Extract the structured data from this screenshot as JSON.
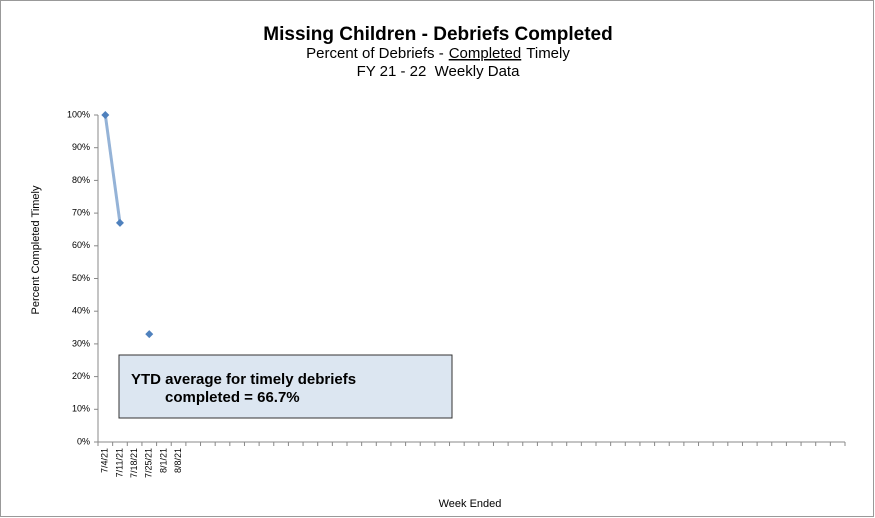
{
  "chart_data": {
    "type": "line",
    "title": "Missing Children - Debriefs Completed",
    "subtitle": [
      "Percent of Debriefs -",
      "Completed",
      "Timely"
    ],
    "subtitle2": "FY 21 - 22  Weekly Data",
    "y_label": "Percent Completed Timely",
    "x_label": "Week Ended",
    "annotation": [
      "YTD average for timely debriefs",
      "completed = 66.7%"
    ],
    "categories": [
      "7/4/21",
      "7/11/21",
      "7/18/21",
      "7/25/21",
      "8/1/21",
      "8/8/21",
      null,
      null,
      null,
      null,
      null,
      null,
      null,
      null,
      null,
      null,
      null,
      null,
      null,
      null,
      null,
      null,
      null,
      null,
      null,
      null,
      null,
      null,
      null,
      null,
      null,
      null,
      null,
      null,
      null,
      null,
      null,
      null,
      null,
      null,
      null,
      null,
      null,
      null,
      null,
      null,
      null,
      null,
      null,
      null,
      null
    ],
    "values": [
      100,
      67,
      null,
      33,
      null,
      null,
      null,
      null,
      null,
      null,
      null,
      null,
      null,
      null,
      null,
      null,
      null,
      null,
      null,
      null,
      null,
      null,
      null,
      null,
      null,
      null,
      null,
      null,
      null,
      null,
      null,
      null,
      null,
      null,
      null,
      null,
      null,
      null,
      null,
      null,
      null,
      null,
      null,
      null,
      null,
      null,
      null,
      null,
      null,
      null,
      null
    ],
    "line_color": "#95b3d7",
    "marker_color": "#4f81bd",
    "ylim": [
      0,
      100
    ],
    "yticks": [
      {
        "value": 0,
        "label": "0%"
      },
      {
        "value": 10,
        "label": "10%"
      },
      {
        "value": 20,
        "label": "20%"
      },
      {
        "value": 30,
        "label": "30%"
      },
      {
        "value": 40,
        "label": "40%"
      },
      {
        "value": 50,
        "label": "50%"
      },
      {
        "value": 60,
        "label": "60%"
      },
      {
        "value": 70,
        "label": "70%"
      },
      {
        "value": 80,
        "label": "80%"
      },
      {
        "value": 90,
        "label": "90%"
      },
      {
        "value": 100,
        "label": "100%"
      }
    ],
    "grid": false
  }
}
